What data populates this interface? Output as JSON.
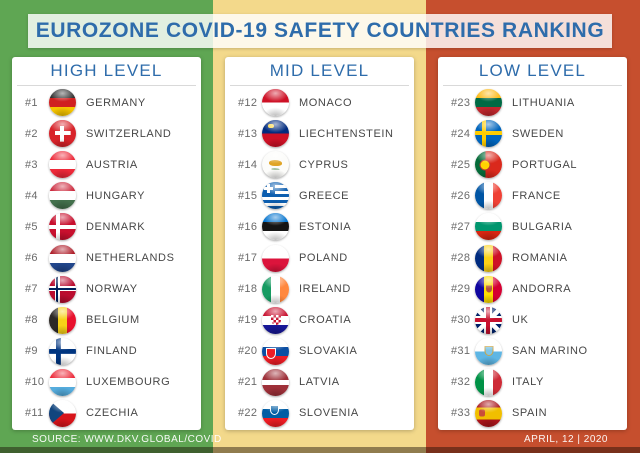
{
  "title": "EUROZONE COVID-19 SAFETY COUNTRIES RANKING",
  "footer": {
    "source": "SOURCE: WWW.DKV.GLOBAL/COVID",
    "date": "APRIL, 12 | 2020"
  },
  "colors": {
    "band_green": "#5fa653",
    "band_yellow": "#f3d98b",
    "band_red": "#c64f2e",
    "heading_blue": "#2e6cab",
    "text_gray": "#474747"
  },
  "chart_data": {
    "type": "table",
    "title": "EUROZONE COVID-19 SAFETY COUNTRIES RANKING",
    "columns": [
      {
        "level": "HIGH LEVEL",
        "band": "green",
        "items": [
          {
            "rank": "#1",
            "country": "GERMANY",
            "flag": "de"
          },
          {
            "rank": "#2",
            "country": "SWITZERLAND",
            "flag": "ch"
          },
          {
            "rank": "#3",
            "country": "AUSTRIA",
            "flag": "at"
          },
          {
            "rank": "#4",
            "country": "HUNGARY",
            "flag": "hu"
          },
          {
            "rank": "#5",
            "country": "DENMARK",
            "flag": "dk"
          },
          {
            "rank": "#6",
            "country": "NETHERLANDS",
            "flag": "nl"
          },
          {
            "rank": "#7",
            "country": "NORWAY",
            "flag": "no"
          },
          {
            "rank": "#8",
            "country": "BELGIUM",
            "flag": "be"
          },
          {
            "rank": "#9",
            "country": "FINLAND",
            "flag": "fi"
          },
          {
            "rank": "#10",
            "country": "LUXEMBOURG",
            "flag": "lu"
          },
          {
            "rank": "#11",
            "country": "CZECHIA",
            "flag": "cz"
          }
        ]
      },
      {
        "level": "MID LEVEL",
        "band": "yellow",
        "items": [
          {
            "rank": "#12",
            "country": "MONACO",
            "flag": "mc"
          },
          {
            "rank": "#13",
            "country": "LIECHTENSTEIN",
            "flag": "li"
          },
          {
            "rank": "#14",
            "country": "CYPRUS",
            "flag": "cy"
          },
          {
            "rank": "#15",
            "country": "GREECE",
            "flag": "gr"
          },
          {
            "rank": "#16",
            "country": "ESTONIA",
            "flag": "ee"
          },
          {
            "rank": "#17",
            "country": "POLAND",
            "flag": "pl"
          },
          {
            "rank": "#18",
            "country": "IRELAND",
            "flag": "ie"
          },
          {
            "rank": "#19",
            "country": "CROATIA",
            "flag": "hr"
          },
          {
            "rank": "#20",
            "country": "SLOVAKIA",
            "flag": "sk"
          },
          {
            "rank": "#21",
            "country": "LATVIA",
            "flag": "lv"
          },
          {
            "rank": "#22",
            "country": "SLOVENIA",
            "flag": "si"
          }
        ]
      },
      {
        "level": "LOW LEVEL",
        "band": "red",
        "items": [
          {
            "rank": "#23",
            "country": "LITHUANIA",
            "flag": "lt"
          },
          {
            "rank": "#24",
            "country": "SWEDEN",
            "flag": "se"
          },
          {
            "rank": "#25",
            "country": "PORTUGAL",
            "flag": "pt"
          },
          {
            "rank": "#26",
            "country": "FRANCE",
            "flag": "fr"
          },
          {
            "rank": "#27",
            "country": "BULGARIA",
            "flag": "bg"
          },
          {
            "rank": "#28",
            "country": "ROMANIA",
            "flag": "ro"
          },
          {
            "rank": "#29",
            "country": "ANDORRA",
            "flag": "ad"
          },
          {
            "rank": "#30",
            "country": "UK",
            "flag": "uk"
          },
          {
            "rank": "#31",
            "country": "SAN MARINO",
            "flag": "sm"
          },
          {
            "rank": "#32",
            "country": "ITALY",
            "flag": "it"
          },
          {
            "rank": "#33",
            "country": "SPAIN",
            "flag": "es"
          }
        ]
      }
    ]
  }
}
